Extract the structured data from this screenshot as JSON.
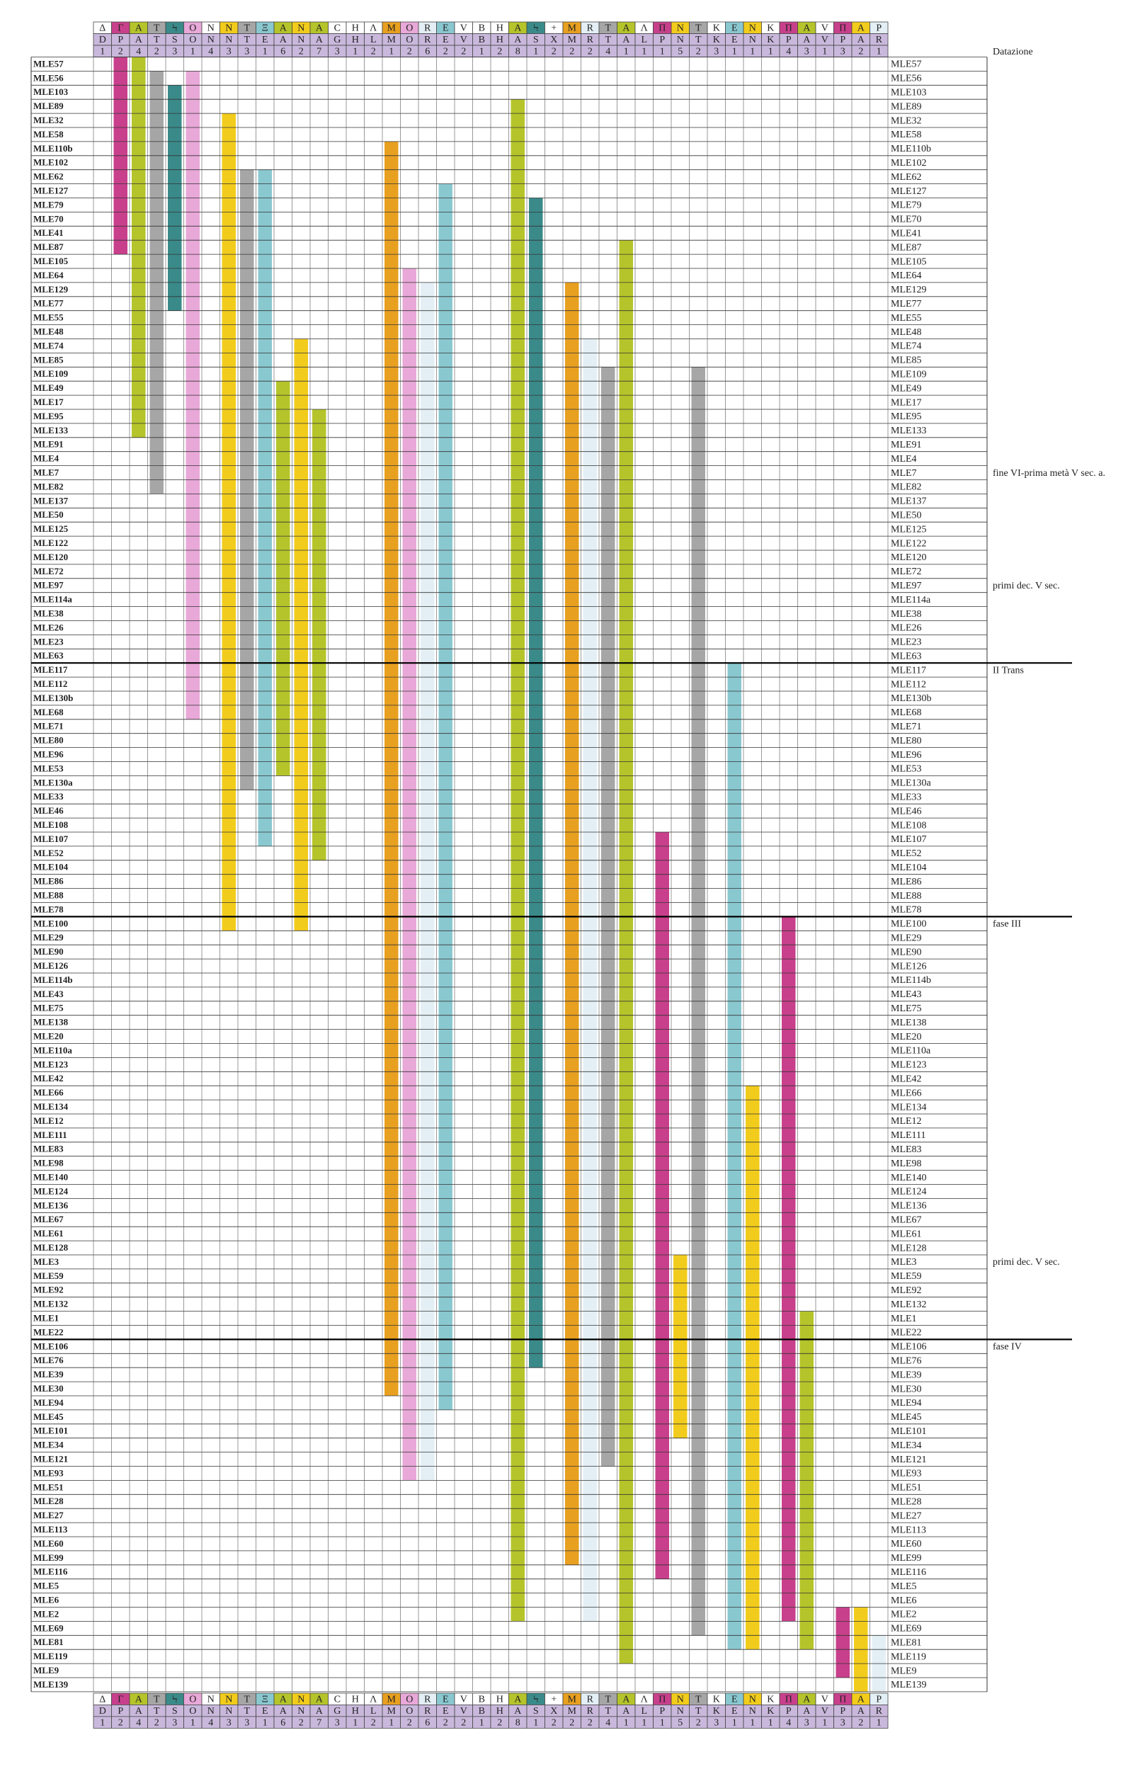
{
  "table": {
    "header_right": "Datazione",
    "columns": [
      {
        "glyph": "Δ",
        "letter": "D",
        "number": "1"
      },
      {
        "glyph": "Γ",
        "letter": "P",
        "number": "2",
        "color": "#c8408c",
        "from": "MLE57",
        "to": "MLE87"
      },
      {
        "glyph": "A",
        "letter": "A",
        "number": "4",
        "color": "#b5c42a",
        "from": "MLE57",
        "to": "MLE133"
      },
      {
        "glyph": "T",
        "letter": "T",
        "number": "2",
        "color": "#a6a6a6",
        "from": "MLE56",
        "to": "MLE82"
      },
      {
        "glyph": "Ϟ",
        "letter": "S",
        "number": "3",
        "color": "#3b8a8a",
        "from": "MLE103",
        "to": "MLE77"
      },
      {
        "glyph": "O",
        "letter": "O",
        "number": "1",
        "color": "#e8a8d8",
        "from": "MLE56",
        "to": "MLE68"
      },
      {
        "glyph": "N",
        "letter": "N",
        "number": "4"
      },
      {
        "glyph": "N",
        "letter": "N",
        "number": "3",
        "color": "#f2cc1c",
        "from": "MLE32",
        "to": "MLE100"
      },
      {
        "glyph": "T",
        "letter": "T",
        "number": "3",
        "color": "#a6a6a6",
        "from": "MLE62",
        "to": "MLE130a"
      },
      {
        "glyph": "Ξ",
        "letter": "E",
        "number": "1",
        "color": "#8ac8d0",
        "from": "MLE62",
        "to": "MLE107"
      },
      {
        "glyph": "A",
        "letter": "A",
        "number": "6",
        "color": "#b5c42a",
        "from": "MLE49",
        "to": "MLE53"
      },
      {
        "glyph": "N",
        "letter": "N",
        "number": "2",
        "color": "#f2cc1c",
        "from": "MLE74",
        "to": "MLE100"
      },
      {
        "glyph": "A",
        "letter": "A",
        "number": "7",
        "color": "#b5c42a",
        "from": "MLE95",
        "to": "MLE52"
      },
      {
        "glyph": "Ϲ",
        "letter": "G",
        "number": "3"
      },
      {
        "glyph": "H",
        "letter": "H",
        "number": "1"
      },
      {
        "glyph": "Λ",
        "letter": "L",
        "number": "2"
      },
      {
        "glyph": "M",
        "letter": "M",
        "number": "1",
        "color": "#e8a020",
        "from": "MLE110b",
        "to": "MLE30"
      },
      {
        "glyph": "O",
        "letter": "O",
        "number": "2",
        "color": "#e8a8d8",
        "from": "MLE64",
        "to": "MLE93"
      },
      {
        "glyph": "R",
        "letter": "R",
        "number": "6",
        "color": "#e3eff5",
        "from": "MLE129",
        "to": "MLE93"
      },
      {
        "glyph": "E",
        "letter": "E",
        "number": "2",
        "color": "#8ac8d0",
        "from": "MLE127",
        "to": "MLE94"
      },
      {
        "glyph": "V",
        "letter": "V",
        "number": "2"
      },
      {
        "glyph": "B",
        "letter": "B",
        "number": "1"
      },
      {
        "glyph": "H",
        "letter": "H",
        "number": "2"
      },
      {
        "glyph": "A",
        "letter": "A",
        "number": "8",
        "color": "#b5c42a",
        "from": "MLE89",
        "to": "MLE2"
      },
      {
        "glyph": "Ϟ",
        "letter": "S",
        "number": "1",
        "color": "#3b8a8a",
        "from": "MLE79",
        "to": "MLE76"
      },
      {
        "glyph": "+",
        "letter": "X",
        "number": "2"
      },
      {
        "glyph": "M",
        "letter": "M",
        "number": "2",
        "color": "#e8a020",
        "from": "MLE129",
        "to": "MLE99"
      },
      {
        "glyph": "R",
        "letter": "R",
        "number": "2",
        "color": "#e3eff5",
        "from": "MLE74",
        "to": "MLE2"
      },
      {
        "glyph": "T",
        "letter": "T",
        "number": "4",
        "color": "#a6a6a6",
        "from": "MLE109",
        "to": "MLE121"
      },
      {
        "glyph": "A",
        "letter": "A",
        "number": "1",
        "color": "#b5c42a",
        "from": "MLE87",
        "to": "MLE119"
      },
      {
        "glyph": "Λ",
        "letter": "L",
        "number": "1"
      },
      {
        "glyph": "Π",
        "letter": "P",
        "number": "1",
        "color": "#c8408c",
        "from": "MLE107",
        "to": "MLE116"
      },
      {
        "glyph": "N",
        "letter": "N",
        "number": "5",
        "color": "#f2cc1c",
        "from": "MLE3",
        "to": "MLE101"
      },
      {
        "glyph": "T",
        "letter": "T",
        "number": "2",
        "color": "#a6a6a6",
        "from": "MLE109",
        "to": "MLE69"
      },
      {
        "glyph": "K",
        "letter": "K",
        "number": "3"
      },
      {
        "glyph": "E",
        "letter": "E",
        "number": "1",
        "color": "#8ac8d0",
        "from": "MLE117",
        "to": "MLE81"
      },
      {
        "glyph": "N",
        "letter": "N",
        "number": "1",
        "color": "#f2cc1c",
        "from": "MLE66",
        "to": "MLE81"
      },
      {
        "glyph": "K",
        "letter": "K",
        "number": "1"
      },
      {
        "glyph": "Π",
        "letter": "P",
        "number": "4",
        "color": "#c8408c",
        "from": "MLE100",
        "to": "MLE2"
      },
      {
        "glyph": "A",
        "letter": "A",
        "number": "3",
        "color": "#b5c42a",
        "from": "MLE1",
        "to": "MLE81"
      },
      {
        "glyph": "V",
        "letter": "V",
        "number": "1"
      },
      {
        "glyph": "Π",
        "letter": "P",
        "number": "3",
        "color": "#c8408c",
        "from": "MLE2",
        "to": "MLE9"
      },
      {
        "glyph": "A",
        "letter": "A",
        "number": "2",
        "color": "#f2cc1c",
        "from": "MLE2",
        "to": "MLE139"
      },
      {
        "glyph": "P",
        "letter": "R",
        "number": "1",
        "color": "#e3eff5",
        "from": "MLE81",
        "to": "MLE139"
      }
    ],
    "rows": [
      "MLE57",
      "MLE56",
      "MLE103",
      "MLE89",
      "MLE32",
      "MLE58",
      "MLE110b",
      "MLE102",
      "MLE62",
      "MLE127",
      "MLE79",
      "MLE70",
      "MLE41",
      "MLE87",
      "MLE105",
      "MLE64",
      "MLE129",
      "MLE77",
      "MLE55",
      "MLE48",
      "MLE74",
      "MLE85",
      "MLE109",
      "MLE49",
      "MLE17",
      "MLE95",
      "MLE133",
      "MLE91",
      "MLE4",
      "MLE7",
      "MLE82",
      "MLE137",
      "MLE50",
      "MLE125",
      "MLE122",
      "MLE120",
      "MLE72",
      "MLE97",
      "MLE114a",
      "MLE38",
      "MLE26",
      "MLE23",
      "MLE63",
      "MLE117",
      "MLE112",
      "MLE130b",
      "MLE68",
      "MLE71",
      "MLE80",
      "MLE96",
      "MLE53",
      "MLE130a",
      "MLE33",
      "MLE46",
      "MLE108",
      "MLE107",
      "MLE52",
      "MLE104",
      "MLE86",
      "MLE88",
      "MLE78",
      "MLE100",
      "MLE29",
      "MLE90",
      "MLE126",
      "MLE114b",
      "MLE43",
      "MLE75",
      "MLE138",
      "MLE20",
      "MLE110a",
      "MLE123",
      "MLE42",
      "MLE66",
      "MLE134",
      "MLE12",
      "MLE111",
      "MLE83",
      "MLE98",
      "MLE140",
      "MLE124",
      "MLE136",
      "MLE67",
      "MLE61",
      "MLE128",
      "MLE3",
      "MLE59",
      "MLE92",
      "MLE132",
      "MLE1",
      "MLE22",
      "MLE106",
      "MLE76",
      "MLE39",
      "MLE30",
      "MLE94",
      "MLE45",
      "MLE101",
      "MLE34",
      "MLE121",
      "MLE93",
      "MLE51",
      "MLE28",
      "MLE27",
      "MLE113",
      "MLE60",
      "MLE99",
      "MLE116",
      "MLE5",
      "MLE6",
      "MLE2",
      "MLE69",
      "MLE81",
      "MLE119",
      "MLE9",
      "MLE139"
    ],
    "phases": [
      {
        "row": "MLE7",
        "label": "fine VI-prima metà V sec. a."
      },
      {
        "row": "MLE97",
        "label": "primi dec. V sec."
      },
      {
        "row": "MLE117",
        "label": "II Trans",
        "rule": true
      },
      {
        "row": "MLE100",
        "label": "fase III",
        "rule": true
      },
      {
        "row": "MLE3",
        "label": "primi dec. V sec."
      },
      {
        "row": "MLE106",
        "label": "fase IV",
        "rule": true
      }
    ]
  }
}
